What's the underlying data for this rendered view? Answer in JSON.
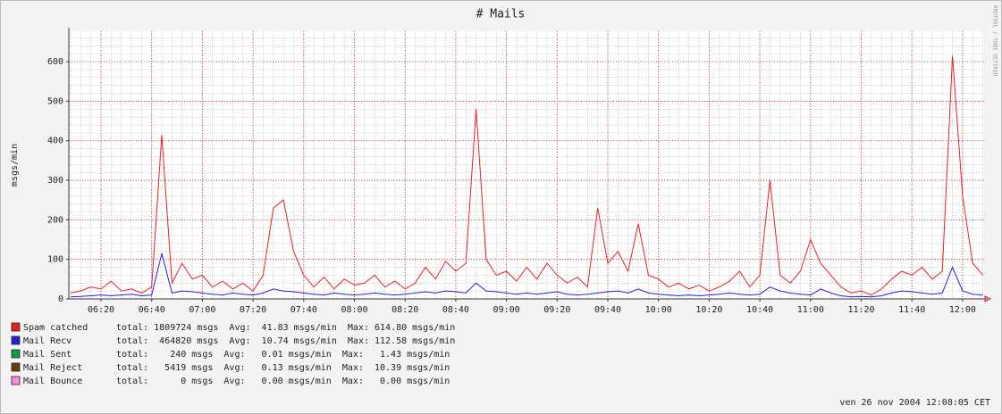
{
  "chart_data": {
    "type": "line",
    "title": "# Mails",
    "ylabel": "msgs/min",
    "watermark": "RRDTOOL / TOBI OETIKER",
    "timestamp": "ven 26 nov 2004 12:08:05 CET",
    "grid": true,
    "xlim": [
      367.3,
      728.5
    ],
    "ylim": [
      0,
      677
    ],
    "yticks": [
      0,
      100,
      200,
      300,
      400,
      500,
      600
    ],
    "xticks": [
      {
        "value": 380,
        "label": "06:20"
      },
      {
        "value": 400,
        "label": "06:40"
      },
      {
        "value": 420,
        "label": "07:00"
      },
      {
        "value": 440,
        "label": "07:20"
      },
      {
        "value": 460,
        "label": "07:40"
      },
      {
        "value": 480,
        "label": "08:00"
      },
      {
        "value": 500,
        "label": "08:20"
      },
      {
        "value": 520,
        "label": "08:40"
      },
      {
        "value": 540,
        "label": "09:00"
      },
      {
        "value": 560,
        "label": "09:20"
      },
      {
        "value": 580,
        "label": "09:40"
      },
      {
        "value": 600,
        "label": "10:00"
      },
      {
        "value": 620,
        "label": "10:20"
      },
      {
        "value": 640,
        "label": "10:40"
      },
      {
        "value": 660,
        "label": "11:00"
      },
      {
        "value": 680,
        "label": "11:20"
      },
      {
        "value": 700,
        "label": "11:40"
      },
      {
        "value": 720,
        "label": "12:00"
      }
    ],
    "x": [
      368,
      372,
      376,
      380,
      384,
      388,
      392,
      396,
      400,
      404,
      408,
      412,
      416,
      420,
      424,
      428,
      432,
      436,
      440,
      444,
      448,
      452,
      456,
      460,
      464,
      468,
      472,
      476,
      480,
      484,
      488,
      492,
      496,
      500,
      504,
      508,
      512,
      516,
      520,
      524,
      528,
      532,
      536,
      540,
      544,
      548,
      552,
      556,
      560,
      564,
      568,
      572,
      576,
      580,
      584,
      588,
      592,
      596,
      600,
      604,
      608,
      612,
      616,
      620,
      624,
      628,
      632,
      636,
      640,
      644,
      648,
      652,
      656,
      660,
      664,
      668,
      672,
      676,
      680,
      684,
      688,
      692,
      696,
      700,
      704,
      708,
      712,
      716,
      720,
      724,
      728
    ],
    "series": [
      {
        "name": "Spam catched",
        "color": "#e8202a",
        "stats": "total: 1809724 msgs  Avg:  41.83 msgs/min  Max: 614.80 msgs/min",
        "values": [
          15,
          20,
          30,
          25,
          45,
          20,
          25,
          15,
          30,
          415,
          40,
          90,
          50,
          60,
          30,
          45,
          25,
          40,
          20,
          60,
          230,
          250,
          120,
          60,
          30,
          55,
          25,
          50,
          35,
          40,
          60,
          30,
          45,
          25,
          40,
          80,
          50,
          95,
          70,
          90,
          480,
          100,
          60,
          70,
          45,
          80,
          50,
          90,
          60,
          40,
          55,
          30,
          230,
          90,
          120,
          70,
          190,
          60,
          50,
          30,
          40,
          25,
          35,
          20,
          30,
          45,
          70,
          30,
          60,
          300,
          60,
          40,
          70,
          150,
          90,
          60,
          30,
          15,
          20,
          10,
          25,
          50,
          70,
          60,
          80,
          50,
          70,
          615,
          260,
          90,
          60
        ]
      },
      {
        "name": "Mail Recv",
        "color": "#2222dd",
        "stats": "total:  464820 msgs  Avg:  10.74 msgs/min  Max: 112.58 msgs/min",
        "values": [
          5,
          6,
          8,
          10,
          8,
          10,
          12,
          8,
          10,
          115,
          15,
          20,
          18,
          15,
          12,
          10,
          15,
          12,
          10,
          15,
          25,
          20,
          18,
          15,
          12,
          10,
          15,
          12,
          10,
          12,
          15,
          12,
          10,
          12,
          15,
          18,
          15,
          20,
          18,
          15,
          40,
          20,
          18,
          15,
          12,
          15,
          12,
          15,
          18,
          12,
          10,
          12,
          15,
          18,
          20,
          15,
          25,
          15,
          12,
          10,
          8,
          10,
          8,
          10,
          12,
          15,
          12,
          10,
          12,
          30,
          20,
          15,
          12,
          10,
          25,
          15,
          8,
          5,
          6,
          5,
          8,
          15,
          20,
          18,
          15,
          12,
          15,
          80,
          20,
          12,
          10
        ]
      },
      {
        "name": "Mail Sent",
        "color": "#109a50",
        "stats": "total:    240 msgs  Avg:   0.01 msgs/min  Max:   1.43 msgs/min",
        "values": [
          0,
          0,
          0,
          0,
          0,
          0,
          0,
          0,
          0,
          0,
          0,
          0,
          0,
          0,
          0,
          0,
          0,
          0,
          0,
          0,
          0,
          0,
          0,
          0,
          0,
          0,
          0,
          0,
          0,
          0,
          0,
          0,
          0,
          0,
          0,
          0,
          0,
          0,
          0,
          0,
          0,
          0,
          0,
          0,
          0,
          0,
          0,
          0,
          0,
          0,
          0,
          0,
          0,
          0,
          0,
          0,
          0,
          0,
          0,
          0,
          0,
          0,
          0,
          0,
          0,
          0,
          0,
          0,
          0,
          0,
          0,
          0,
          0,
          0,
          0,
          0,
          0,
          0,
          0,
          0,
          0,
          0,
          0,
          0,
          0,
          0,
          0,
          0,
          0,
          0,
          0
        ]
      },
      {
        "name": "Mail Reject",
        "color": "#6a3a10",
        "stats": "total:   5419 msgs  Avg:   0.13 msgs/min  Max:  10.39 msgs/min",
        "values": [
          0,
          0,
          0,
          0,
          0,
          0,
          0,
          0,
          0,
          0,
          0,
          0,
          0,
          0,
          0,
          0,
          0,
          0,
          0,
          0,
          0,
          0,
          0,
          0,
          0,
          0,
          0,
          0,
          0,
          0,
          0,
          0,
          0,
          0,
          0,
          0,
          0,
          0,
          0,
          0,
          0,
          0,
          0,
          0,
          0,
          0,
          0,
          0,
          0,
          0,
          0,
          0,
          0,
          0,
          0,
          0,
          0,
          0,
          0,
          0,
          0,
          0,
          0,
          0,
          0,
          0,
          0,
          0,
          0,
          0,
          0,
          0,
          0,
          0,
          0,
          0,
          0,
          0,
          0,
          0,
          0,
          0,
          0,
          0,
          0,
          0,
          0,
          0,
          0,
          0,
          0
        ]
      },
      {
        "name": "Mail Bounce",
        "color": "#f58ee0",
        "stats": "total:      0 msgs  Avg:   0.00 msgs/min  Max:   0.00 msgs/min",
        "values": [
          0,
          0,
          0,
          0,
          0,
          0,
          0,
          0,
          0,
          0,
          0,
          0,
          0,
          0,
          0,
          0,
          0,
          0,
          0,
          0,
          0,
          0,
          0,
          0,
          0,
          0,
          0,
          0,
          0,
          0,
          0,
          0,
          0,
          0,
          0,
          0,
          0,
          0,
          0,
          0,
          0,
          0,
          0,
          0,
          0,
          0,
          0,
          0,
          0,
          0,
          0,
          0,
          0,
          0,
          0,
          0,
          0,
          0,
          0,
          0,
          0,
          0,
          0,
          0,
          0,
          0,
          0,
          0,
          0,
          0,
          0,
          0,
          0,
          0,
          0,
          0,
          0,
          0,
          0,
          0,
          0,
          0,
          0,
          0,
          0,
          0,
          0,
          0,
          0,
          0,
          0
        ]
      }
    ]
  }
}
